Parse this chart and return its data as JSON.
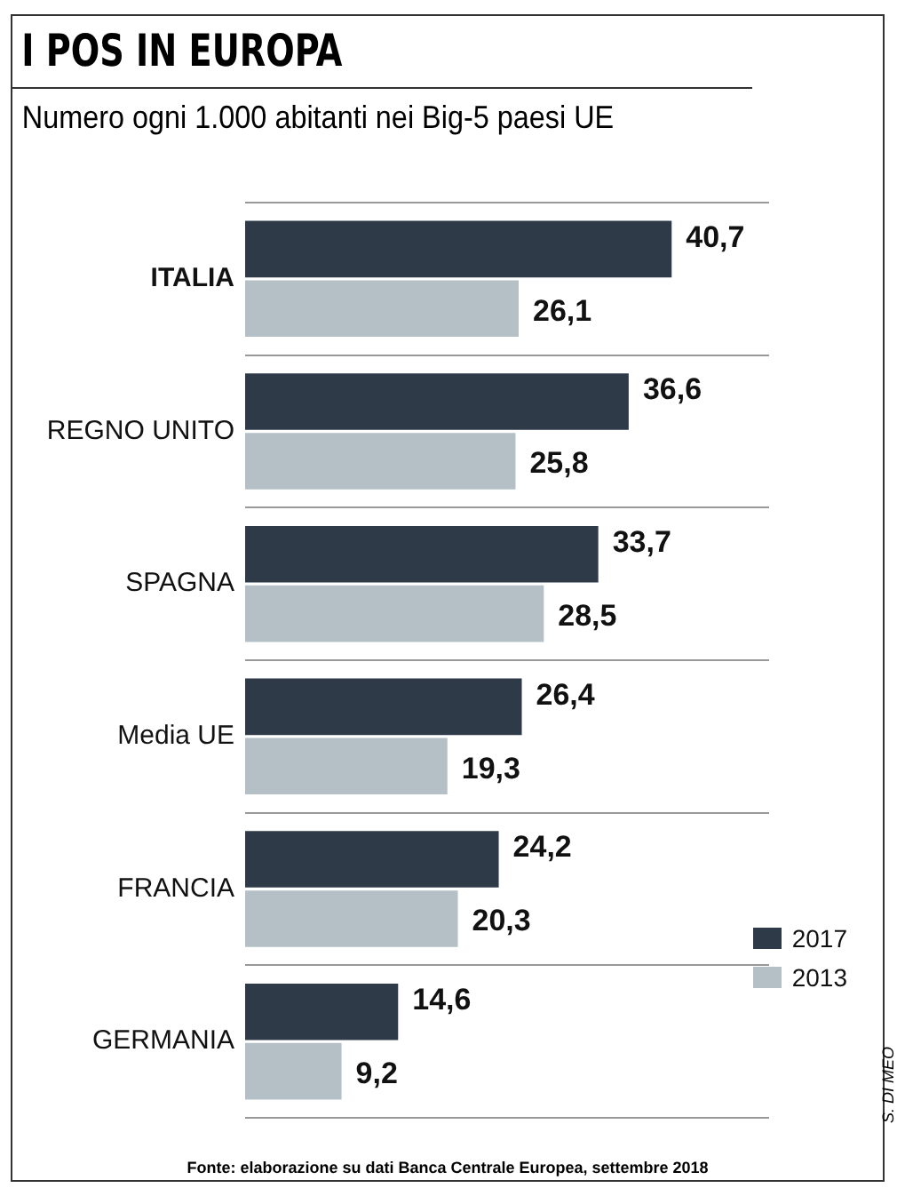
{
  "chart_data": {
    "type": "bar",
    "orientation": "horizontal",
    "title": "I POS IN EUROPA",
    "subtitle": "Numero ogni 1.000 abitanti nei Big-5 paesi UE",
    "categories": [
      "ITALIA",
      "REGNO UNITO",
      "SPAGNA",
      "Media UE",
      "FRANCIA",
      "GERMANIA"
    ],
    "series": [
      {
        "name": "2017",
        "color": "#2e3a48",
        "values": [
          40.7,
          36.6,
          33.7,
          26.4,
          24.2,
          14.6
        ],
        "value_labels": [
          "40,7",
          "36,6",
          "33,7",
          "26,4",
          "24,2",
          "14,6"
        ]
      },
      {
        "name": "2013",
        "color": "#b4c0c6",
        "values": [
          26.1,
          25.8,
          28.5,
          19.3,
          20.3,
          9.2
        ],
        "value_labels": [
          "26,1",
          "25,8",
          "28,5",
          "19,3",
          "20,3",
          "9,2"
        ]
      }
    ],
    "legend": "bottom right",
    "grid": "y",
    "tick_labels": "y",
    "annotations": [
      "S. DI MEO",
      "Fonte: elaborazione su dati Banca Centrale Europea, settembre 2018"
    ]
  }
}
